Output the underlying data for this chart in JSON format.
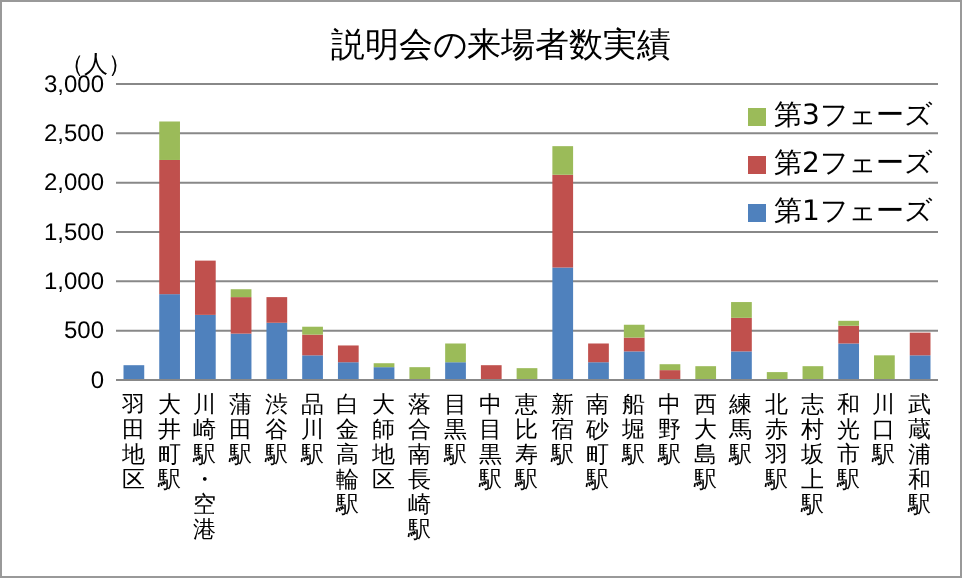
{
  "chart_data": {
    "type": "bar",
    "title": "説明会の来場者数実績",
    "ylabel": "（人）",
    "stacked": true,
    "grid": "y",
    "legend": "top right",
    "categories": [
      "羽田地区",
      "大井町駅",
      "川崎駅・空港",
      "蒲田駅",
      "渋谷駅",
      "品川駅",
      "白金高輪駅",
      "大師地区",
      "落合南長崎駅",
      "目黒駅",
      "中目黒駅",
      "恵比寿駅",
      "新宿駅",
      "南砂町駅",
      "船堀駅",
      "中野駅",
      "西大島駅",
      "練馬駅",
      "北赤羽駅",
      "志村坂上駅",
      "和光市駅",
      "川口駅",
      "武蔵浦和駅"
    ],
    "ylim": [
      0,
      3000
    ],
    "yticks": [
      0,
      500,
      {
        "value": 1000,
        "label": "1,000"
      },
      {
        "value": 1500,
        "label": "1,500"
      },
      {
        "value": 2000,
        "label": "2,000"
      },
      {
        "value": 2500,
        "label": "2,500"
      },
      {
        "value": 3000,
        "label": "3,000"
      }
    ],
    "series": [
      {
        "name": "第1フェーズ",
        "color": "#4f81bd",
        "values": [
          150,
          870,
          660,
          470,
          580,
          250,
          180,
          130,
          null,
          180,
          null,
          null,
          1140,
          180,
          290,
          null,
          null,
          290,
          null,
          null,
          370,
          null,
          250
        ]
      },
      {
        "name": "第2フェーズ",
        "color": "#c0504d",
        "values": [
          null,
          1360,
          550,
          370,
          260,
          210,
          170,
          null,
          null,
          null,
          150,
          null,
          940,
          190,
          140,
          100,
          null,
          340,
          null,
          null,
          180,
          null,
          230
        ]
      },
      {
        "name": "第3フェーズ",
        "color": "#9bbb59",
        "values": [
          null,
          390,
          null,
          80,
          null,
          80,
          null,
          40,
          130,
          190,
          null,
          120,
          290,
          null,
          130,
          60,
          140,
          160,
          80,
          140,
          50,
          250,
          null
        ]
      }
    ]
  }
}
